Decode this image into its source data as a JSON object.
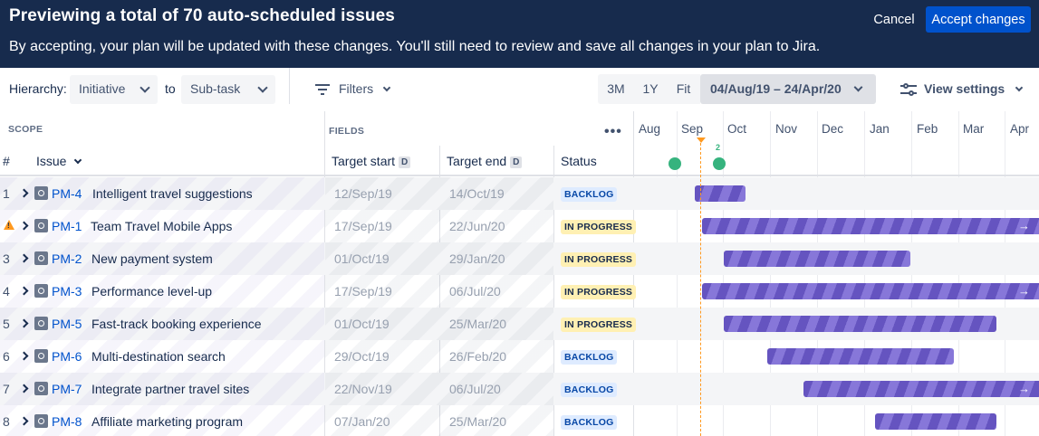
{
  "banner": {
    "title_prefix": "Previewing a total of ",
    "title_count": "70",
    "title_suffix": " auto-scheduled issues",
    "description": "By accepting, your plan will be updated with these changes. You'll still need to review and save all changes in your plan to Jira.",
    "cancel_label": "Cancel",
    "accept_label": "Accept changes"
  },
  "toolbar": {
    "hierarchy_label": "Hierarchy:",
    "hierarchy_from": "Initiative",
    "to_label": "to",
    "hierarchy_to": "Sub-task",
    "filters_label": "Filters",
    "zoom_options": [
      "3M",
      "1Y",
      "Fit"
    ],
    "date_range": "04/Aug/19 – 24/Apr/20",
    "view_settings_label": "View settings"
  },
  "headers": {
    "scope": "SCOPE",
    "fields": "FIELDS",
    "num": "#",
    "issue": "Issue",
    "target_start": "Target start",
    "target_end": "Target end",
    "date_badge": "D",
    "status": "Status"
  },
  "timeline": {
    "months": [
      "Aug",
      "Sep",
      "Oct",
      "Nov",
      "Dec",
      "Jan",
      "Feb",
      "Mar",
      "Apr"
    ],
    "marker_count": "2"
  },
  "rows": [
    {
      "num": "1",
      "warning": false,
      "key": "PM-4",
      "title": "Intelligent travel suggestions",
      "start": "12/Sep/19",
      "end": "14/Oct/19",
      "status": "BACKLOG"
    },
    {
      "num": "",
      "warning": true,
      "key": "PM-1",
      "title": "Team Travel Mobile Apps",
      "start": "17/Sep/19",
      "end": "22/Jun/20",
      "status": "IN PROGRESS"
    },
    {
      "num": "3",
      "warning": false,
      "key": "PM-2",
      "title": "New payment system",
      "start": "01/Oct/19",
      "end": "29/Jan/20",
      "status": "IN PROGRESS"
    },
    {
      "num": "4",
      "warning": false,
      "key": "PM-3",
      "title": "Performance level-up",
      "start": "17/Sep/19",
      "end": "06/Jul/20",
      "status": "IN PROGRESS"
    },
    {
      "num": "5",
      "warning": false,
      "key": "PM-5",
      "title": "Fast-track booking experience",
      "start": "01/Oct/19",
      "end": "25/Mar/20",
      "status": "IN PROGRESS"
    },
    {
      "num": "6",
      "warning": false,
      "key": "PM-6",
      "title": "Multi-destination search",
      "start": "29/Oct/19",
      "end": "26/Feb/20",
      "status": "BACKLOG"
    },
    {
      "num": "7",
      "warning": false,
      "key": "PM-7",
      "title": "Integrate partner travel sites",
      "start": "22/Nov/19",
      "end": "06/Jul/20",
      "status": "BACKLOG"
    },
    {
      "num": "8",
      "warning": false,
      "key": "PM-8",
      "title": "Affiliate marketing program",
      "start": "07/Jan/20",
      "end": "25/Mar/20",
      "status": "BACKLOG"
    }
  ]
}
